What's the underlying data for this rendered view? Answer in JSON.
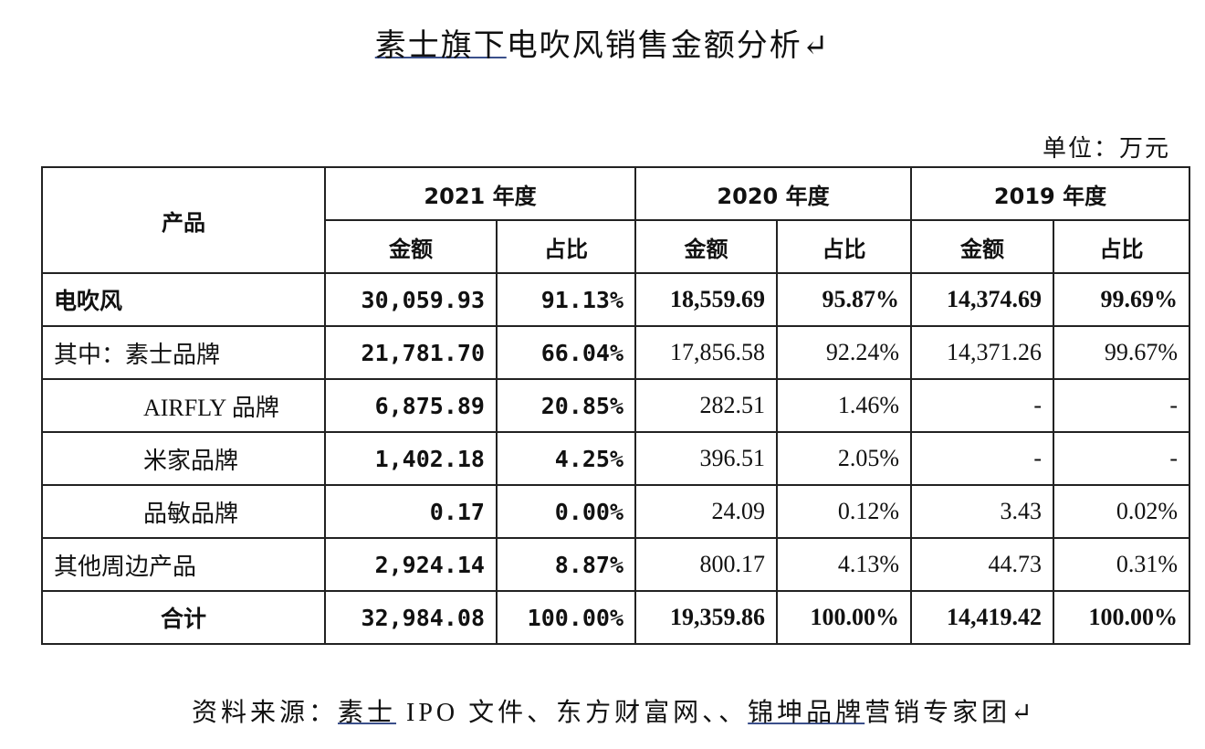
{
  "header": {
    "title_parts": [
      "素士旗下",
      "电吹风销售金额分析↵"
    ],
    "unit": "单位：万元"
  },
  "table": {
    "corner": "产品",
    "years": [
      "2021 年度",
      "2020 年度",
      "2019 年度"
    ],
    "subheaders": [
      "金额",
      "占比",
      "金额",
      "占比",
      "金额",
      "占比"
    ],
    "rows": [
      [
        "电吹风",
        "30,059.93",
        "91.13%",
        "18,559.69",
        "95.87%",
        "14,374.69",
        "99.69%"
      ],
      [
        "其中：素士品牌",
        "21,781.70",
        "66.04%",
        "17,856.58",
        "92.24%",
        "14,371.26",
        "99.67%"
      ],
      [
        "AIRFLY 品牌",
        "6,875.89",
        "20.85%",
        "282.51",
        "1.46%",
        "-",
        "-"
      ],
      [
        "米家品牌",
        "1,402.18",
        "4.25%",
        "396.51",
        "2.05%",
        "-",
        "-"
      ],
      [
        "品敏品牌",
        "0.17",
        "0.00%",
        "24.09",
        "0.12%",
        "3.43",
        "0.02%"
      ],
      [
        "其他周边产品",
        "2,924.14",
        "8.87%",
        "800.17",
        "4.13%",
        "44.73",
        "0.31%"
      ],
      [
        "合计",
        "32,984.08",
        "100.00%",
        "19,359.86",
        "100.00%",
        "14,419.42",
        "100.00%"
      ]
    ]
  },
  "footer": {
    "source_parts": [
      "资料来源：",
      "素士",
      " IPO 文件、东方财富网、、",
      "锦坤品牌",
      "营销专家团↵"
    ]
  }
}
